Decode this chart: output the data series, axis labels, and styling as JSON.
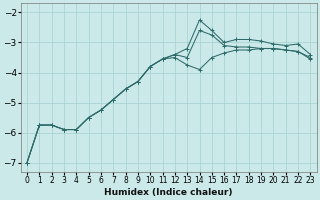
{
  "xlabel": "Humidex (Indice chaleur)",
  "background_color": "#cce9e9",
  "grid_color": "#aad4d4",
  "line_color": "#2d6b6b",
  "xlim": [
    -0.5,
    23.5
  ],
  "ylim": [
    -7.3,
    -1.7
  ],
  "xticks": [
    0,
    1,
    2,
    3,
    4,
    5,
    6,
    7,
    8,
    9,
    10,
    11,
    12,
    13,
    14,
    15,
    16,
    17,
    18,
    19,
    20,
    21,
    22,
    23
  ],
  "yticks": [
    -7,
    -6,
    -5,
    -4,
    -3,
    -2
  ],
  "line1_x": [
    0,
    1,
    2,
    3,
    4,
    5,
    6,
    7,
    8,
    9,
    10,
    11,
    12,
    13,
    14,
    15,
    16,
    17,
    18,
    19,
    20,
    21,
    22,
    23
  ],
  "line1_y": [
    -7.0,
    -5.75,
    -5.75,
    -5.9,
    -5.9,
    -5.5,
    -5.25,
    -4.9,
    -4.55,
    -4.3,
    -3.8,
    -3.55,
    -3.4,
    -3.2,
    -2.25,
    -2.6,
    -3.0,
    -2.9,
    -2.9,
    -2.95,
    -3.05,
    -3.1,
    -3.05,
    -3.4
  ],
  "line2_x": [
    0,
    1,
    2,
    3,
    4,
    5,
    6,
    7,
    8,
    9,
    10,
    11,
    12,
    13,
    14,
    15,
    16,
    17,
    18,
    19,
    20,
    21,
    22,
    23
  ],
  "line2_y": [
    -7.0,
    -5.75,
    -5.75,
    -5.9,
    -5.9,
    -5.5,
    -5.25,
    -4.9,
    -4.55,
    -4.3,
    -3.8,
    -3.55,
    -3.4,
    -3.5,
    -2.6,
    -2.75,
    -3.1,
    -3.15,
    -3.15,
    -3.2,
    -3.2,
    -3.25,
    -3.3,
    -3.5
  ],
  "line3_x": [
    0,
    1,
    2,
    3,
    4,
    5,
    6,
    7,
    8,
    9,
    10,
    11,
    12,
    13,
    14,
    15,
    16,
    17,
    18,
    19,
    20,
    21,
    22,
    23
  ],
  "line3_y": [
    -7.0,
    -5.75,
    -5.75,
    -5.9,
    -5.9,
    -5.5,
    -5.25,
    -4.9,
    -4.55,
    -4.3,
    -3.8,
    -3.55,
    -3.5,
    -3.75,
    -3.9,
    -3.5,
    -3.35,
    -3.25,
    -3.25,
    -3.2,
    -3.2,
    -3.25,
    -3.3,
    -3.55
  ]
}
